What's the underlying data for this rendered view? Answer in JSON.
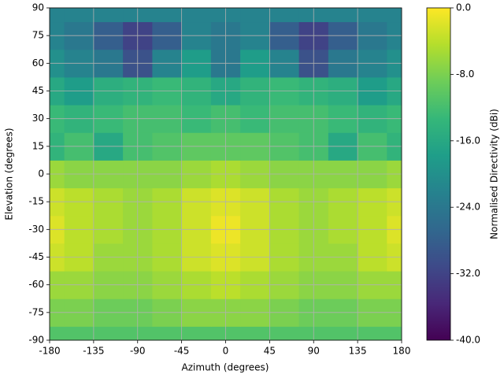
{
  "chart_data": {
    "type": "contour",
    "x_label": "Azimuth (degrees)",
    "y_label": "Elevation (degrees)",
    "colorbar_label": "Normalised Directivity (dBi)",
    "x": [
      -180,
      -150,
      -120,
      -90,
      -60,
      -30,
      0,
      30,
      60,
      90,
      120,
      150,
      180
    ],
    "y": [
      -90,
      -75,
      -60,
      -45,
      -30,
      -15,
      0,
      15,
      30,
      45,
      60,
      75,
      90
    ],
    "z": [
      [
        -11,
        -11,
        -11,
        -11,
        -11,
        -11,
        -11,
        -11,
        -11,
        -11,
        -11,
        -11,
        -11
      ],
      [
        -8,
        -8,
        -9,
        -9,
        -8,
        -7,
        -7,
        -7,
        -8,
        -9,
        -9,
        -8,
        -8
      ],
      [
        -6,
        -6,
        -7,
        -7,
        -6,
        -5,
        -4,
        -5,
        -6,
        -7,
        -7,
        -6,
        -6
      ],
      [
        -3,
        -4,
        -6,
        -6,
        -5,
        -3,
        -2,
        -3,
        -5,
        -6,
        -6,
        -4,
        -3
      ],
      [
        -2,
        -4,
        -5,
        -6,
        -5,
        -3,
        -1,
        -3,
        -5,
        -6,
        -5,
        -4,
        -2
      ],
      [
        -3,
        -4,
        -5,
        -6,
        -5,
        -3,
        -2,
        -3,
        -5,
        -6,
        -5,
        -4,
        -3
      ],
      [
        -6,
        -7,
        -7,
        -7,
        -7,
        -6,
        -5,
        -6,
        -7,
        -7,
        -7,
        -7,
        -6
      ],
      [
        -14,
        -12,
        -16,
        -12,
        -11,
        -10,
        -10,
        -10,
        -11,
        -12,
        -16,
        -12,
        -14
      ],
      [
        -13,
        -14,
        -13,
        -12,
        -12,
        -13,
        -12,
        -13,
        -12,
        -12,
        -13,
        -14,
        -13
      ],
      [
        -16,
        -18,
        -15,
        -14,
        -13,
        -14,
        -16,
        -14,
        -13,
        -14,
        -15,
        -18,
        -16
      ],
      [
        -20,
        -22,
        -24,
        -30,
        -22,
        -18,
        -24,
        -18,
        -22,
        -30,
        -24,
        -22,
        -20
      ],
      [
        -22,
        -24,
        -28,
        -32,
        -28,
        -22,
        -24,
        -22,
        -28,
        -32,
        -28,
        -24,
        -22
      ],
      [
        -22,
        -22,
        -22,
        -22,
        -22,
        -22,
        -22,
        -22,
        -22,
        -22,
        -22,
        -22,
        -22
      ]
    ],
    "xlim": [
      -180,
      180
    ],
    "xticks": [
      -180,
      -135,
      -90,
      -45,
      0,
      45,
      90,
      135,
      180
    ],
    "ylim": [
      -90,
      90
    ],
    "yticks": [
      -90,
      -75,
      -60,
      -45,
      -30,
      -15,
      0,
      15,
      30,
      45,
      60,
      75,
      90
    ],
    "zlim": [
      -40,
      0
    ],
    "zticks": [
      {
        "value": 0,
        "label": "0.0"
      },
      {
        "value": -8,
        "label": "-8.0"
      },
      {
        "value": -16,
        "label": "-16.0"
      },
      {
        "value": -24,
        "label": "-24.0"
      },
      {
        "value": -32,
        "label": "-32.0"
      },
      {
        "value": -40,
        "label": "-40.0"
      }
    ],
    "colormap": "viridis",
    "grid": true
  }
}
